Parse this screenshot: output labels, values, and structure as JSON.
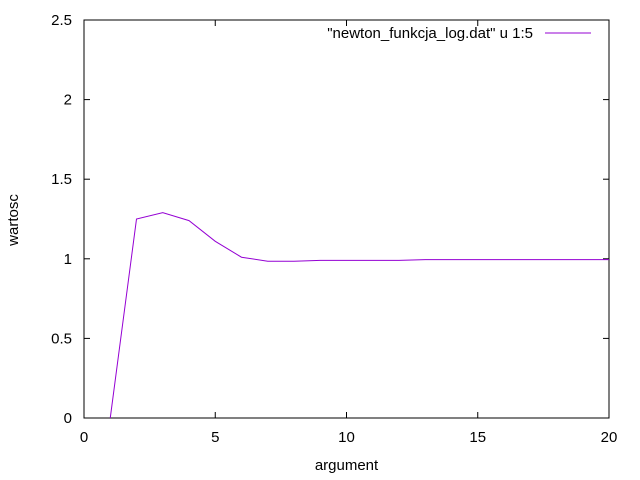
{
  "chart_data": {
    "type": "line",
    "title": "",
    "xlabel": "argument",
    "ylabel": "wartosc",
    "xlim": [
      0,
      20
    ],
    "ylim": [
      0,
      2.5
    ],
    "xticks": [
      0,
      5,
      10,
      15,
      20
    ],
    "yticks": [
      0,
      0.5,
      1,
      1.5,
      2,
      2.5
    ],
    "xtick_labels": [
      "0",
      "5",
      "10",
      "15",
      "20"
    ],
    "ytick_labels": [
      "0",
      "0.5",
      "1",
      "1.5",
      "2",
      "2.5"
    ],
    "grid": false,
    "legend_position": "top-right",
    "series": [
      {
        "name": "\"newton_funkcja_log.dat\" u 1:5",
        "color": "#9400d3",
        "x": [
          1,
          2,
          3,
          4,
          5,
          6,
          7,
          8,
          9,
          10,
          11,
          12,
          13,
          14,
          15,
          16,
          17,
          18,
          19,
          20
        ],
        "y": [
          0,
          1.25,
          1.29,
          1.24,
          1.11,
          1.01,
          0.985,
          0.985,
          0.99,
          0.99,
          0.99,
          0.99,
          0.995,
          0.995,
          0.995,
          0.995,
          0.995,
          0.995,
          0.995,
          0.995
        ]
      }
    ]
  }
}
